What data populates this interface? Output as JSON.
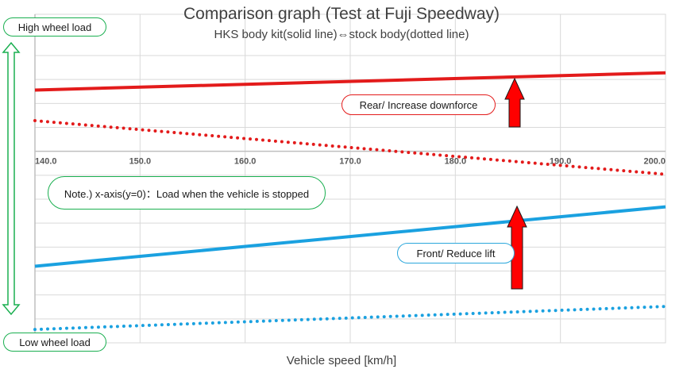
{
  "chart_data": {
    "type": "line",
    "title": "Comparison graph (Test at Fuji Speedway)",
    "subtitle": "HKS body kit(solid line)⇔stock body(dotted line)",
    "xlabel": "Vehicle speed [km/h]",
    "ylabel": "",
    "xlim": [
      140,
      200
    ],
    "x_ticks": [
      "140.0",
      "150.0",
      "160.0",
      "170.0",
      "180.0",
      "190.0",
      "200.0"
    ],
    "ylim": [
      -100,
      50
    ],
    "grid": true,
    "series": [
      {
        "key": "rear_hks",
        "x": [
          140,
          200
        ],
        "y": [
          32,
          41
        ],
        "color": "#e31b1b",
        "style": "solid"
      },
      {
        "key": "rear_stock",
        "x": [
          140,
          200
        ],
        "y": [
          16,
          -12
        ],
        "color": "#e31b1b",
        "style": "dotted"
      },
      {
        "key": "front_hks",
        "x": [
          140,
          200
        ],
        "y": [
          -60,
          -29
        ],
        "color": "#1aa1e0",
        "style": "solid"
      },
      {
        "key": "front_stock",
        "x": [
          140,
          200
        ],
        "y": [
          -93,
          -81
        ],
        "color": "#1aa1e0",
        "style": "dotted"
      }
    ]
  },
  "annotations": {
    "high_wheel_load": "High wheel load",
    "low_wheel_load": "Low wheel load",
    "note": "Note.) x-axis(y=0)：Load when the vehicle is stopped",
    "rear": "Rear/ Increase downforce",
    "front": "Front/ Reduce lift"
  },
  "colors": {
    "arrow_fill": "#ff0000",
    "arrow_outline": "#1a1a1a",
    "grid": "#d9d9d9",
    "axis": "#bfbfbf",
    "double_arrow": "#1aaf50",
    "text": "#404040"
  }
}
